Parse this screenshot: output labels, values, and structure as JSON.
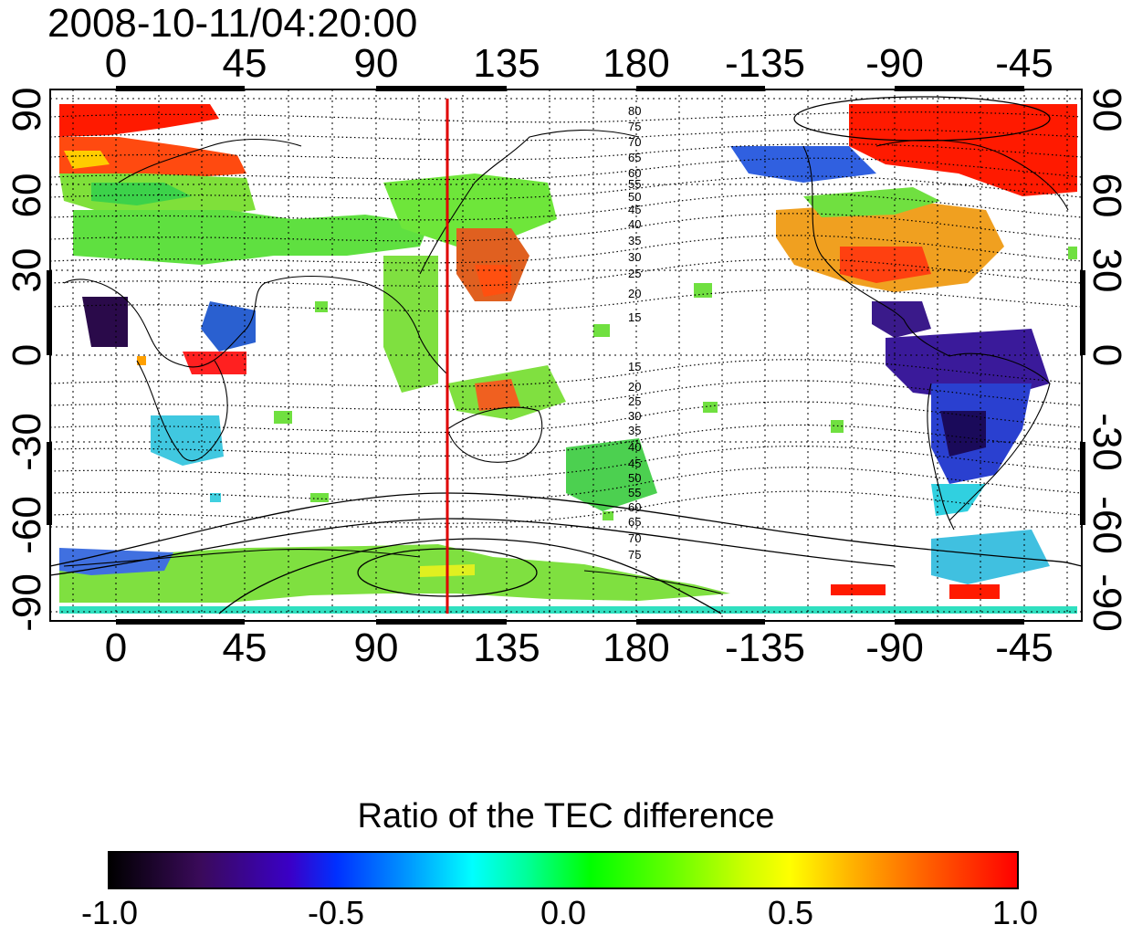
{
  "timestamp": "2008-10-11/04:20:00",
  "longitude_labels": [
    "0",
    "45",
    "90",
    "135",
    "180",
    "-135",
    "-90",
    "-45"
  ],
  "latitude_labels": [
    "90",
    "60",
    "30",
    "0",
    "-30",
    "-60",
    "-90"
  ],
  "contour_labels_north": [
    "80",
    "75",
    "70",
    "65",
    "60",
    "55",
    "50",
    "45",
    "40",
    "35",
    "30",
    "25",
    "20",
    "15"
  ],
  "contour_labels_south": [
    "15",
    "20",
    "25",
    "30",
    "35",
    "40",
    "45",
    "50",
    "55",
    "60",
    "65",
    "70",
    "75"
  ],
  "colorbar": {
    "title": "Ratio of the TEC difference",
    "ticks": [
      "-1.0",
      "-0.5",
      "0.0",
      "0.5",
      "1.0"
    ],
    "min": -1.0,
    "max": 1.0
  },
  "marker_line": {
    "longitude": 115,
    "color": "#e00000"
  }
}
